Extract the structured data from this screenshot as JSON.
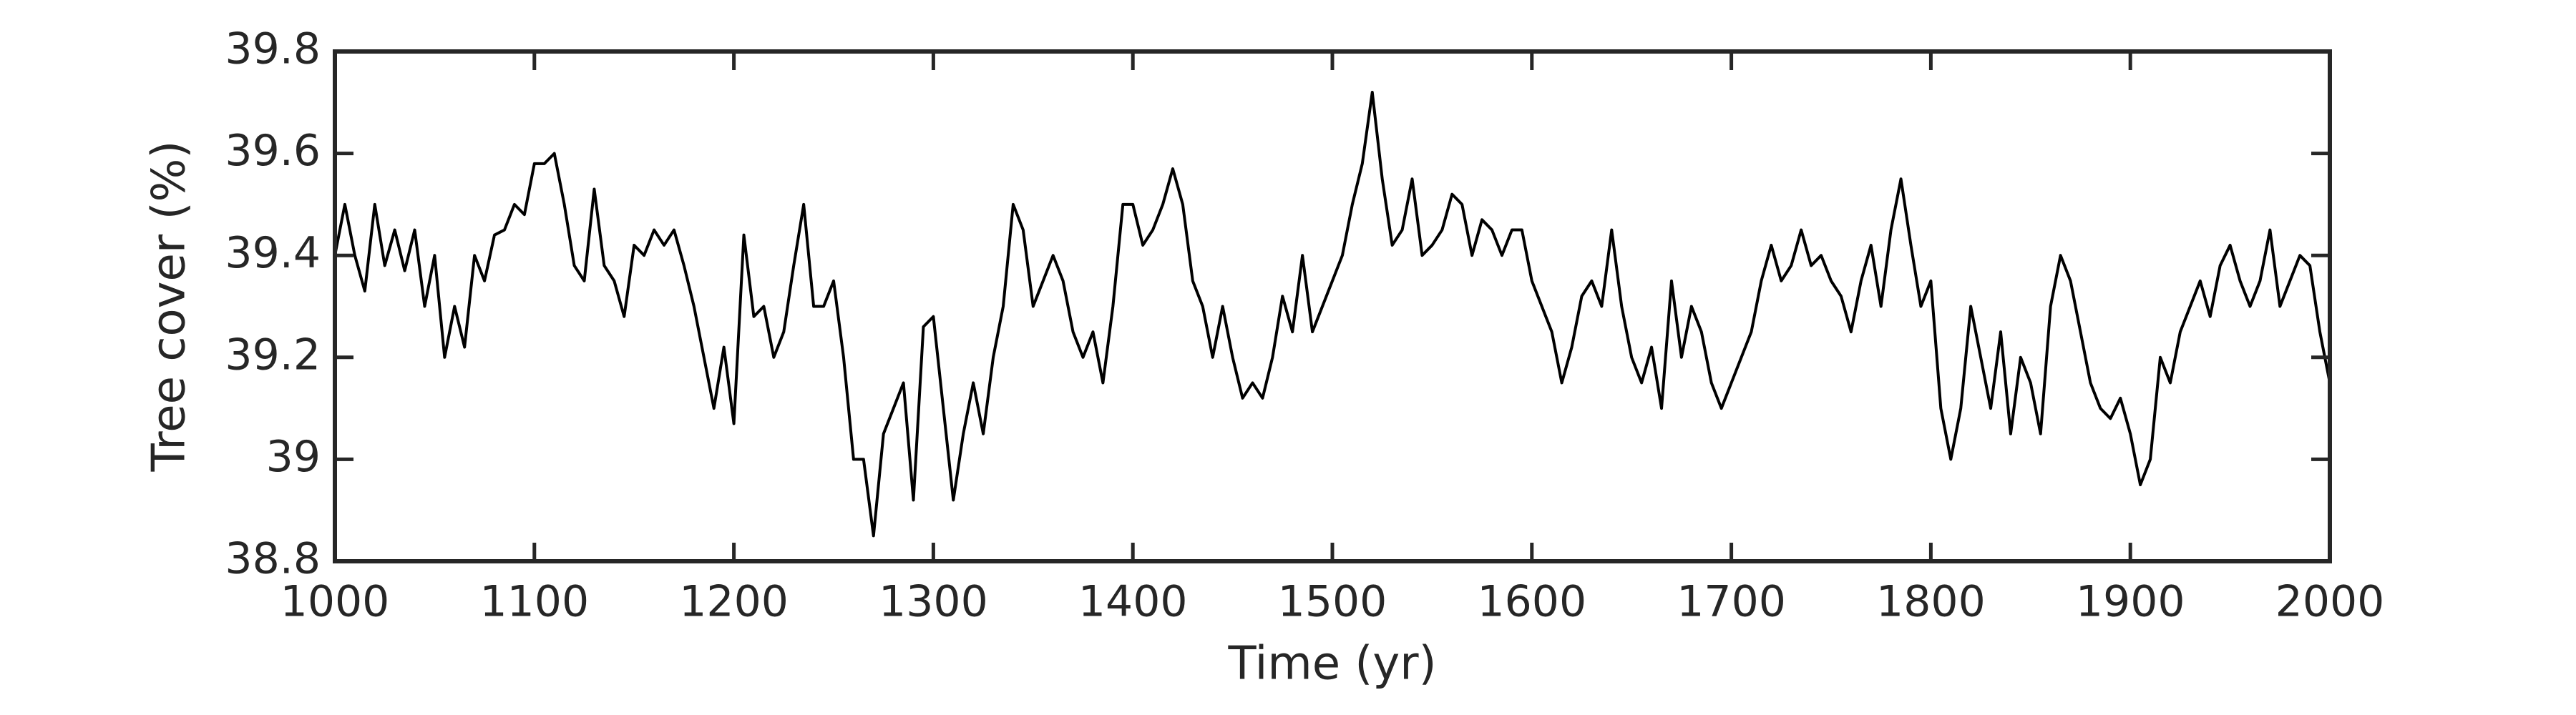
{
  "chart_data": {
    "type": "line",
    "xlabel": "Time (yr)",
    "ylabel": "Tree cover (%)",
    "xlim": [
      1000,
      2000
    ],
    "xticks": [
      1000,
      1100,
      1200,
      1300,
      1400,
      1500,
      1600,
      1700,
      1800,
      1900,
      2000
    ],
    "ylim": [
      38.8,
      39.8
    ],
    "yticks": [
      38.8,
      39,
      39.2,
      39.4,
      39.6,
      39.8
    ],
    "grid": false,
    "x": [
      1000,
      1005,
      1010,
      1015,
      1020,
      1025,
      1030,
      1035,
      1040,
      1045,
      1050,
      1055,
      1060,
      1065,
      1070,
      1075,
      1080,
      1085,
      1090,
      1095,
      1100,
      1105,
      1110,
      1115,
      1120,
      1125,
      1130,
      1135,
      1140,
      1145,
      1150,
      1155,
      1160,
      1165,
      1170,
      1175,
      1180,
      1185,
      1190,
      1195,
      1200,
      1205,
      1210,
      1215,
      1220,
      1225,
      1230,
      1235,
      1240,
      1245,
      1250,
      1255,
      1260,
      1265,
      1270,
      1275,
      1280,
      1285,
      1290,
      1295,
      1300,
      1305,
      1310,
      1315,
      1320,
      1325,
      1330,
      1335,
      1340,
      1345,
      1350,
      1355,
      1360,
      1365,
      1370,
      1375,
      1380,
      1385,
      1390,
      1395,
      1400,
      1405,
      1410,
      1415,
      1420,
      1425,
      1430,
      1435,
      1440,
      1445,
      1450,
      1455,
      1460,
      1465,
      1470,
      1475,
      1480,
      1485,
      1490,
      1495,
      1500,
      1505,
      1510,
      1515,
      1520,
      1525,
      1530,
      1535,
      1540,
      1545,
      1550,
      1555,
      1560,
      1565,
      1570,
      1575,
      1580,
      1585,
      1590,
      1595,
      1600,
      1605,
      1610,
      1615,
      1620,
      1625,
      1630,
      1635,
      1640,
      1645,
      1650,
      1655,
      1660,
      1665,
      1670,
      1675,
      1680,
      1685,
      1690,
      1695,
      1700,
      1705,
      1710,
      1715,
      1720,
      1725,
      1730,
      1735,
      1740,
      1745,
      1750,
      1755,
      1760,
      1765,
      1770,
      1775,
      1780,
      1785,
      1790,
      1795,
      1800,
      1805,
      1810,
      1815,
      1820,
      1825,
      1830,
      1835,
      1840,
      1845,
      1850,
      1855,
      1860,
      1865,
      1870,
      1875,
      1880,
      1885,
      1890,
      1895,
      1900,
      1905,
      1910,
      1915,
      1920,
      1925,
      1930,
      1935,
      1940,
      1945,
      1950,
      1955,
      1960,
      1965,
      1970,
      1975,
      1980,
      1985,
      1990,
      1995,
      2000
    ],
    "series": [
      {
        "color": "#000000",
        "values": [
          39.4,
          39.5,
          39.4,
          39.33,
          39.5,
          39.38,
          39.45,
          39.37,
          39.45,
          39.3,
          39.4,
          39.2,
          39.3,
          39.22,
          39.4,
          39.35,
          39.44,
          39.45,
          39.5,
          39.48,
          39.58,
          39.58,
          39.6,
          39.5,
          39.38,
          39.35,
          39.53,
          39.38,
          39.35,
          39.28,
          39.42,
          39.4,
          39.45,
          39.42,
          39.45,
          39.38,
          39.3,
          39.2,
          39.1,
          39.22,
          39.07,
          39.44,
          39.28,
          39.3,
          39.2,
          39.25,
          39.38,
          39.5,
          39.3,
          39.3,
          39.35,
          39.2,
          39.0,
          39.0,
          38.85,
          39.05,
          39.1,
          39.15,
          38.92,
          39.26,
          39.28,
          39.1,
          38.92,
          39.05,
          39.15,
          39.05,
          39.2,
          39.3,
          39.5,
          39.45,
          39.3,
          39.35,
          39.4,
          39.35,
          39.25,
          39.2,
          39.25,
          39.15,
          39.3,
          39.5,
          39.5,
          39.42,
          39.45,
          39.5,
          39.57,
          39.5,
          39.35,
          39.3,
          39.2,
          39.3,
          39.2,
          39.12,
          39.15,
          39.12,
          39.2,
          39.32,
          39.25,
          39.4,
          39.25,
          39.3,
          39.35,
          39.4,
          39.5,
          39.58,
          39.72,
          39.55,
          39.42,
          39.45,
          39.55,
          39.4,
          39.42,
          39.45,
          39.52,
          39.5,
          39.4,
          39.47,
          39.45,
          39.4,
          39.45,
          39.45,
          39.35,
          39.3,
          39.25,
          39.15,
          39.22,
          39.32,
          39.35,
          39.3,
          39.45,
          39.3,
          39.2,
          39.15,
          39.22,
          39.1,
          39.35,
          39.2,
          39.3,
          39.25,
          39.15,
          39.1,
          39.15,
          39.2,
          39.25,
          39.35,
          39.42,
          39.35,
          39.38,
          39.45,
          39.38,
          39.4,
          39.35,
          39.32,
          39.25,
          39.35,
          39.42,
          39.3,
          39.45,
          39.55,
          39.42,
          39.3,
          39.35,
          39.1,
          39.0,
          39.1,
          39.3,
          39.2,
          39.1,
          39.25,
          39.05,
          39.2,
          39.15,
          39.05,
          39.3,
          39.4,
          39.35,
          39.25,
          39.15,
          39.1,
          39.08,
          39.12,
          39.05,
          38.95,
          39.0,
          39.2,
          39.15,
          39.25,
          39.3,
          39.35,
          39.28,
          39.38,
          39.42,
          39.35,
          39.3,
          39.35,
          39.45,
          39.3,
          39.35,
          39.4,
          39.38,
          39.25,
          39.15
        ]
      }
    ]
  }
}
